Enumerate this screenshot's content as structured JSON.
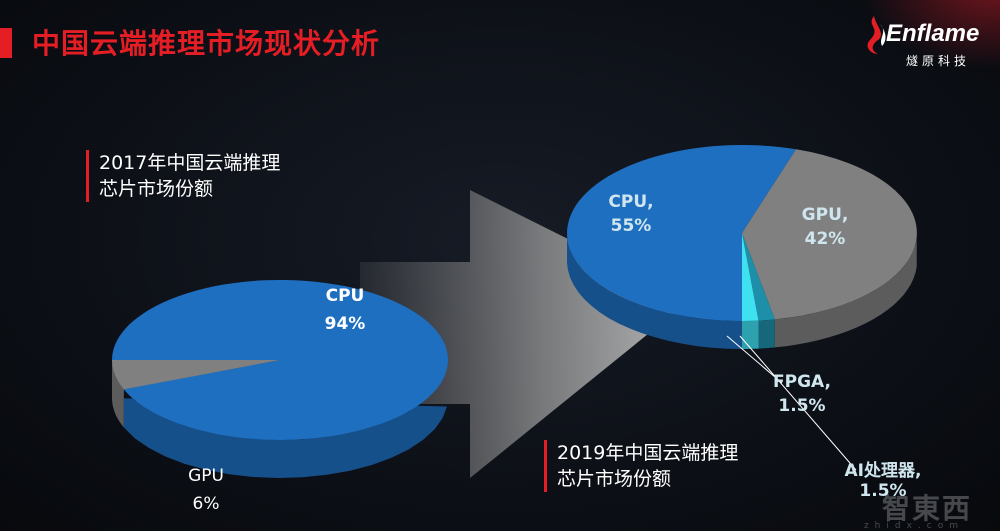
{
  "title": "中国云端推理市场现状分析",
  "logo": {
    "name": "Enflame",
    "sub": "燧原科技"
  },
  "captions": {
    "left": [
      "2017年中国云端推理",
      "芯片市场份额"
    ],
    "right": [
      "2019年中国云端推理",
      "芯片市场份额"
    ]
  },
  "chart_data": [
    {
      "type": "pie",
      "categories": [
        "CPU",
        "GPU"
      ],
      "values": [
        94,
        6
      ],
      "labels": [
        {
          "name": "CPU",
          "value": "94%"
        },
        {
          "name": "GPU",
          "value": "6%"
        }
      ]
    },
    {
      "type": "pie",
      "categories": [
        "CPU",
        "GPU",
        "FPGA",
        "AI处理器"
      ],
      "values": [
        55,
        42,
        1.5,
        1.5
      ],
      "labels": [
        {
          "name": "CPU,",
          "value": "55%"
        },
        {
          "name": "GPU,",
          "value": "42%"
        },
        {
          "name": "FPGA,",
          "value": "1.5%"
        },
        {
          "name": "AI处理器,",
          "value": "1.5%"
        }
      ]
    }
  ],
  "colors": {
    "accent": "#e51e25",
    "cpu": "#1f6fc0",
    "gpu": "#808080",
    "fpga": "#1e8fa8",
    "ai": "#3fe0f0"
  },
  "watermark": {
    "text": "智東西",
    "sub": "zhidx.com"
  }
}
